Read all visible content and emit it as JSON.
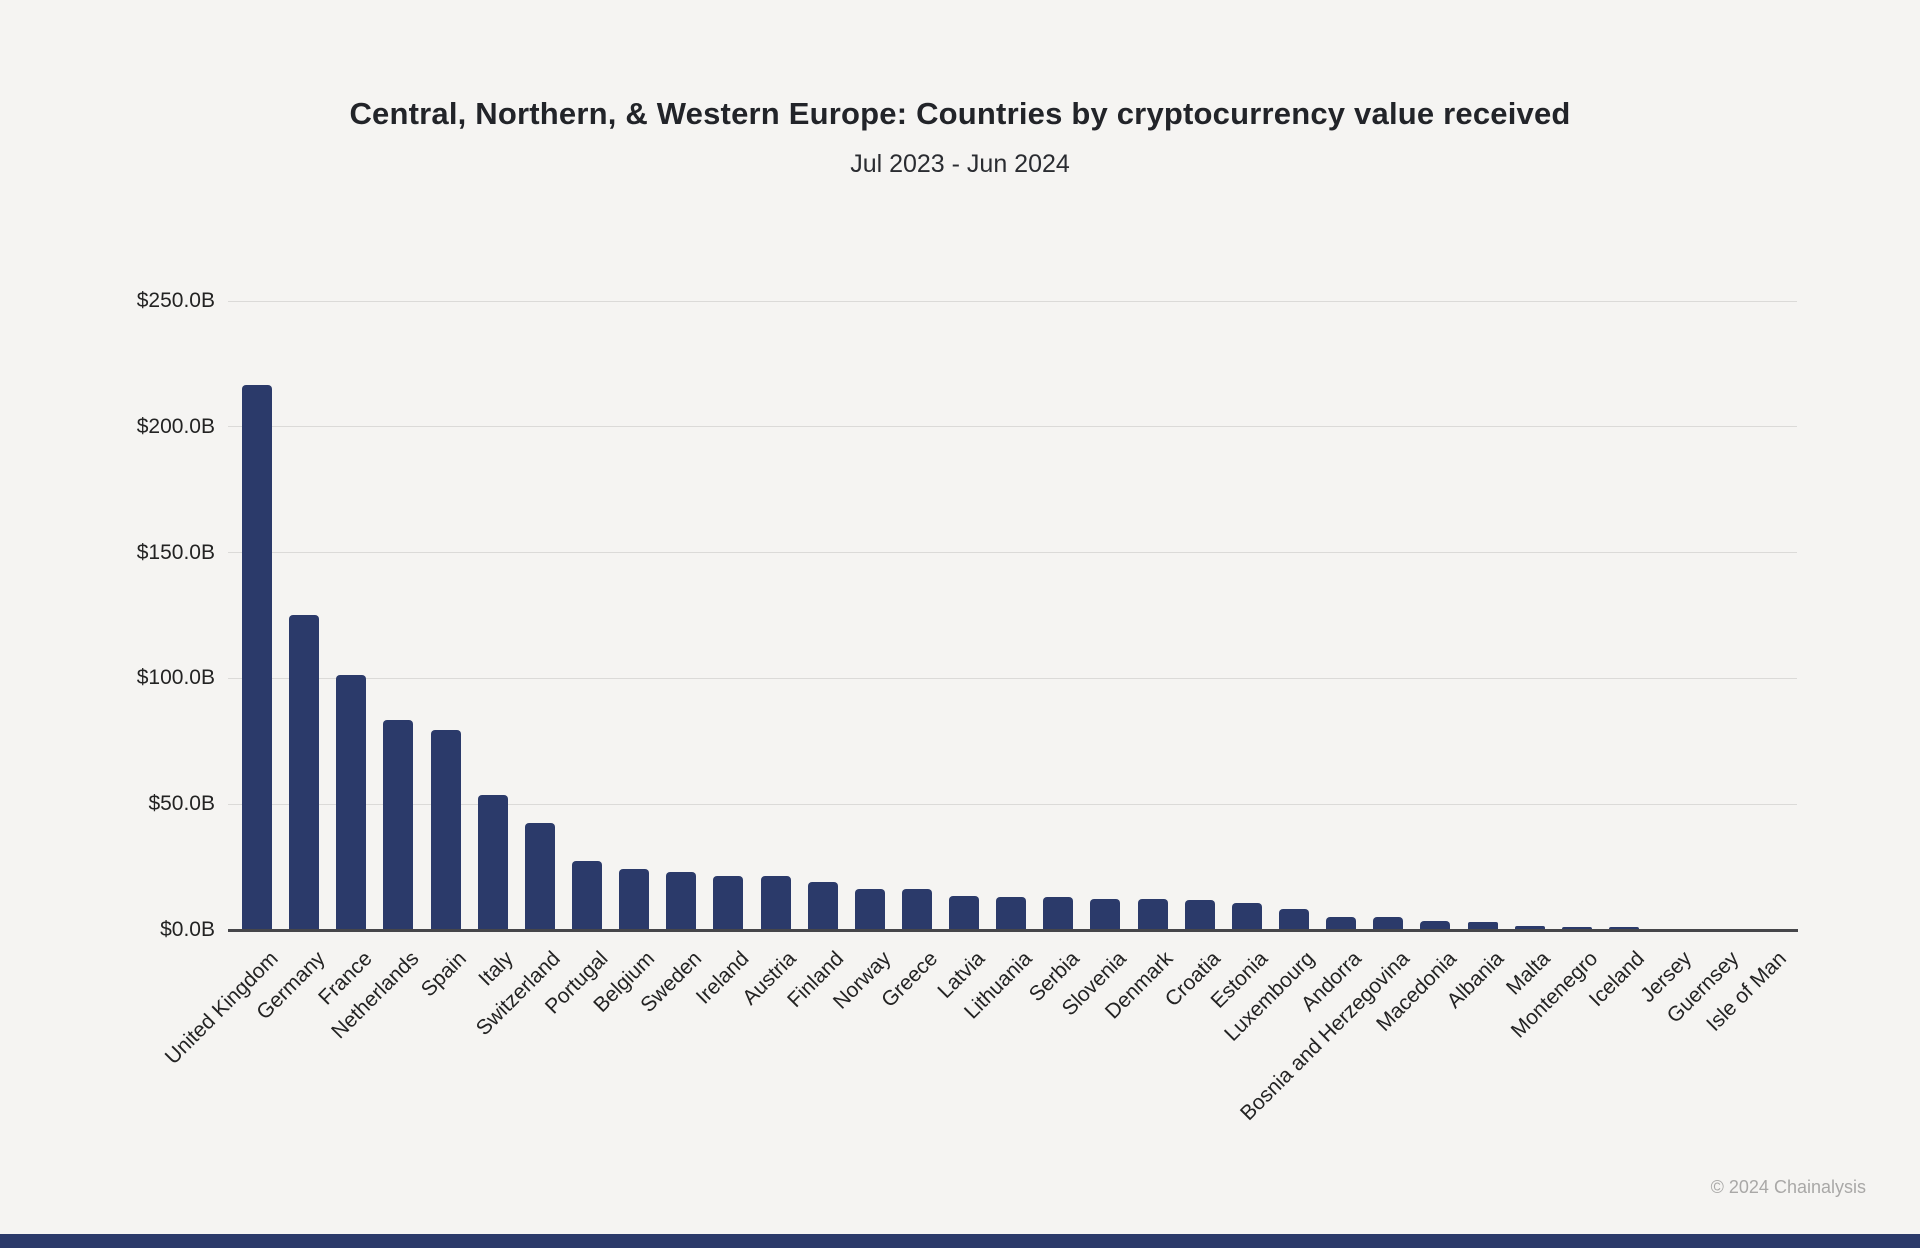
{
  "page": {
    "title": "Central, Northern, & Western Europe: Countries by cryptocurrency value received",
    "subtitle": "Jul 2023 - Jun 2024",
    "copyright": "© 2024 Chainalysis",
    "background_color": "#f5f4f2",
    "bar_color": "#2b3a6a",
    "accent_band_color": "#2b3a6a"
  },
  "chart_data": {
    "type": "bar",
    "title": "Central, Northern, & Western Europe: Countries by cryptocurrency value received",
    "subtitle": "Jul 2023 - Jun 2024",
    "unit": "USD billions received",
    "xlabel": "",
    "ylabel": "",
    "ylim": [
      0,
      250
    ],
    "grid": true,
    "legend": false,
    "yticks": [
      {
        "value": 0,
        "label": "$0.0B"
      },
      {
        "value": 50,
        "label": "$50.0B"
      },
      {
        "value": 100,
        "label": "$100.0B"
      },
      {
        "value": 150,
        "label": "$150.0B"
      },
      {
        "value": 200,
        "label": "$200.0B"
      },
      {
        "value": 250,
        "label": "$250.0B"
      }
    ],
    "categories": [
      "United Kingdom",
      "Germany",
      "France",
      "Netherlands",
      "Spain",
      "Italy",
      "Switzerland",
      "Portugal",
      "Belgium",
      "Sweden",
      "Ireland",
      "Austria",
      "Finland",
      "Norway",
      "Greece",
      "Latvia",
      "Lithuania",
      "Serbia",
      "Slovenia",
      "Denmark",
      "Croatia",
      "Estonia",
      "Luxembourg",
      "Andorra",
      "Bosnia and Herzegovina",
      "Macedonia",
      "Albania",
      "Malta",
      "Montenegro",
      "Iceland",
      "Jersey",
      "Guernsey",
      "Isle of Man"
    ],
    "values": [
      216.7,
      125.1,
      101.2,
      83.6,
      79.5,
      53.8,
      42.7,
      27.5,
      24.2,
      23.0,
      21.6,
      21.4,
      19.2,
      16.3,
      16.1,
      13.6,
      13.1,
      13.0,
      12.5,
      12.2,
      11.8,
      10.9,
      8.2,
      5.2,
      5.0,
      3.7,
      3.1,
      1.4,
      1.3,
      1.2,
      0.2,
      0.1,
      0.1
    ]
  }
}
